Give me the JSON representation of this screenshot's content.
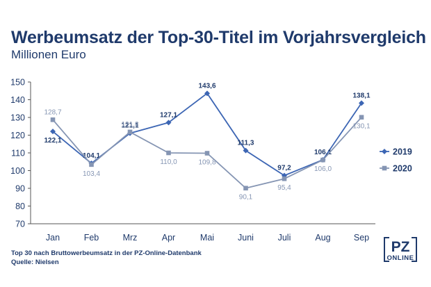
{
  "chart_data": {
    "type": "line",
    "title": "Werbeumsatz der Top-30-Titel im Vorjahrsvergleich",
    "subtitle": "Millionen Euro",
    "categories": [
      "Jan",
      "Feb",
      "Mrz",
      "Apr",
      "Mai",
      "Juni",
      "Juli",
      "Aug",
      "Sep"
    ],
    "series": [
      {
        "name": "2019",
        "values": [
          122.1,
          104.1,
          121.1,
          127.1,
          143.6,
          111.3,
          97.2,
          106.1,
          138.1
        ],
        "labels": [
          "122,1",
          "104,1",
          "121,1",
          "127,1",
          "143,6",
          "111,3",
          "97,2",
          "106,1",
          "138,1"
        ],
        "color": "#3d66b4",
        "marker": "diamond"
      },
      {
        "name": "2020",
        "values": [
          128.7,
          103.4,
          121.8,
          110.0,
          109.8,
          90.1,
          95.4,
          106.0,
          130.1
        ],
        "labels": [
          "128,7",
          "103,4",
          "121,8",
          "110,0",
          "109,8",
          "90,1",
          "95,4",
          "106,0",
          "130,1"
        ],
        "color": "#8595b3",
        "marker": "square"
      }
    ],
    "ylim": [
      70,
      150
    ],
    "yticks": [
      "70",
      "80",
      "90",
      "100",
      "110",
      "120",
      "130",
      "140",
      "150"
    ],
    "grid": false,
    "legend": "right"
  },
  "footnotes": {
    "line1": "Top 30 nach Bruttowerbeumsatz in der PZ-Online-Datenbank",
    "line2": "Quelle: Nielsen"
  },
  "logo": {
    "top": "PZ",
    "bottom": "ONLINE"
  },
  "colors": {
    "text": "#1f3a6b",
    "axis": "#555555"
  }
}
